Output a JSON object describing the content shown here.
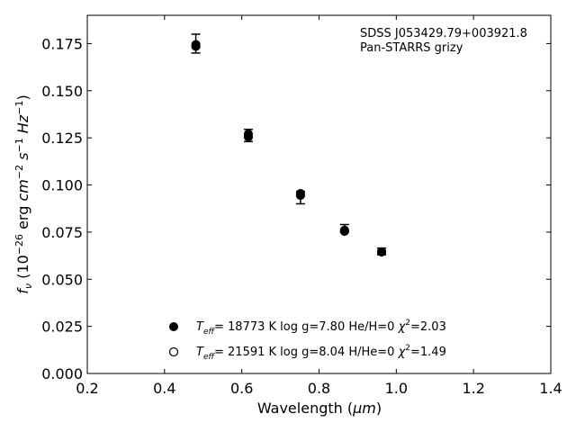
{
  "chart_data": {
    "type": "scatter",
    "title": "",
    "xlabel_main": "Wavelength (",
    "xlabel_unit": "μm",
    "xlabel_close": ")",
    "ylabel": {
      "f": "f",
      "nu": "ν",
      "open": " (10",
      "exp1": "−26",
      "erg": " erg ",
      "cm": "cm",
      "exp2": "−2",
      "s": " s",
      "exp3": "−1",
      "hz": " Hz",
      "exp4": "−1",
      "close": ")"
    },
    "xlim": [
      0.2,
      1.4
    ],
    "ylim": [
      0.0,
      0.19
    ],
    "xticks": [
      "0.2",
      "0.4",
      "0.6",
      "0.8",
      "1.0",
      "1.2",
      "1.4"
    ],
    "yticks": [
      "0.000",
      "0.025",
      "0.050",
      "0.075",
      "0.100",
      "0.125",
      "0.150",
      "0.175"
    ],
    "grid": false,
    "annotation": [
      "SDSS J053429.79+003921.8",
      "Pan-STARRS grizy"
    ],
    "observed": {
      "x": [
        0.481,
        0.617,
        0.752,
        0.866,
        0.962
      ],
      "y": [
        0.1745,
        0.127,
        0.0955,
        0.076,
        0.0645
      ],
      "err_upper": [
        0.0055,
        0.0025,
        0.001,
        0.003,
        0.002
      ],
      "err_lower": [
        0.0045,
        0.004,
        0.0055,
        0.001,
        0.0015
      ]
    },
    "series": [
      {
        "marker": "filled-circle",
        "x": [
          0.481,
          0.617,
          0.752,
          0.866,
          0.962
        ],
        "y": [
          0.1735,
          0.1255,
          0.0945,
          0.0755,
          0.0645
        ],
        "label": {
          "t": "T",
          "sub": "eff",
          "rest": "= 18773 K  log g=7.80  He/H=0  ",
          "chi": "χ",
          "sup": "2",
          "val": "=2.03"
        }
      },
      {
        "marker": "open-circle",
        "x": [],
        "y": [],
        "label": {
          "t": "T",
          "sub": "eff",
          "rest": "= 21591 K  log g=8.04  H/He=0  ",
          "chi": "χ",
          "sup": "2",
          "val": "=1.49"
        }
      }
    ],
    "legend_location": "lower-center"
  }
}
